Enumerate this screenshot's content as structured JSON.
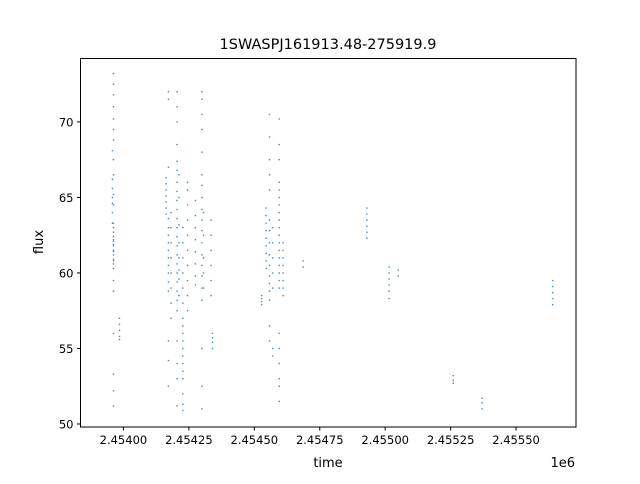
{
  "chart_data": {
    "type": "scatter",
    "title": "1SWASPJ161913.48-275919.9",
    "xlabel": "time",
    "ylabel": "flux",
    "x_offset_label": "1e6",
    "xlim": [
      2453836,
      2455729
    ],
    "ylim": [
      49.8,
      74.2
    ],
    "grid": false,
    "color": "#1f77b4",
    "x_ticks": [
      2454000,
      2454250,
      2454500,
      2454750,
      2455000,
      2455250,
      2455500
    ],
    "x_tick_labels": [
      "2.45400",
      "2.45425",
      "2.45450",
      "2.45475",
      "2.45500",
      "2.45525",
      "2.45550"
    ],
    "y_ticks": [
      50,
      55,
      60,
      65,
      70
    ],
    "y_tick_labels": [
      "50",
      "55",
      "60",
      "65",
      "70"
    ],
    "groups": [
      {
        "x": 2453958,
        "y": [
          68.1,
          66.2,
          65.6,
          65.0,
          64.6,
          64.0,
          63.3
        ]
      },
      {
        "x": 2453962,
        "y": [
          63.3,
          63.0,
          62.7,
          62.4,
          62.1,
          61.8,
          61.5,
          61.2,
          60.9,
          60.6,
          60.3,
          61.9,
          62.2,
          61.4,
          60.8,
          73.2,
          72.5,
          71.8,
          71.0,
          70.2,
          69.5,
          68.8,
          67.5,
          66.5,
          65.2,
          64.5,
          59.5,
          58.8,
          56.0,
          53.3,
          52.2,
          51.2
        ]
      },
      {
        "x": 2453985,
        "y": [
          57.0,
          56.6,
          56.2,
          55.8,
          55.6
        ]
      },
      {
        "x": 2454163,
        "y": [
          66.3,
          65.9,
          65.5,
          65.1,
          64.7,
          64.3,
          63.9
        ]
      },
      {
        "x": 2454172,
        "y": [
          63.6,
          63.0,
          62.5,
          62.0,
          61.5,
          61.0,
          60.5,
          60.0,
          59.4,
          58.8,
          55.5,
          54.2,
          52.5,
          67.0,
          71.5,
          72.0
        ]
      },
      {
        "x": 2454182,
        "y": [
          64.0,
          63.0,
          62.0,
          61.0,
          60.0,
          59.0,
          58.0,
          57.0
        ]
      },
      {
        "x": 2454205,
        "y": [
          67.4,
          66.8,
          66.0,
          65.4,
          64.8,
          64.2,
          63.6,
          63.0,
          62.4,
          61.8,
          61.2,
          60.6,
          60.0,
          59.4,
          58.8,
          58.2,
          57.5,
          72.0,
          71.0,
          70.0,
          68.5,
          55.5,
          54.0,
          53.0,
          51.2
        ]
      },
      {
        "x": 2454212,
        "y": [
          66.5,
          65.0,
          63.2,
          62.0,
          61.0,
          60.2,
          59.6,
          58.5
        ]
      },
      {
        "x": 2454227,
        "y": [
          63.0,
          62.0,
          61.0,
          60.0,
          59.0,
          58.0,
          57.0,
          56.5,
          56.0,
          55.5,
          55.0,
          54.5,
          54.0,
          53.5,
          53.0,
          52.0,
          51.3,
          50.9
        ]
      },
      {
        "x": 2454245,
        "y": [
          66.0,
          65.5,
          64.5,
          63.5,
          62.5,
          61.5,
          60.5,
          59.5,
          58.5,
          57.5
        ]
      },
      {
        "x": 2454275,
        "y": [
          64.8,
          63.8,
          63.0,
          62.2,
          61.4,
          60.6,
          59.8,
          59.2
        ]
      },
      {
        "x": 2454300,
        "y": [
          66.5,
          65.8,
          65.0,
          64.2,
          63.5,
          62.8,
          62.0,
          61.2,
          60.5,
          59.8,
          59.0,
          58.2,
          72.0,
          71.5,
          70.5,
          69.5,
          68.0,
          55.0,
          52.5,
          51.0
        ]
      },
      {
        "x": 2454306,
        "y": [
          64.0,
          62.5,
          61.0,
          60.0,
          59.0
        ]
      },
      {
        "x": 2454335,
        "y": [
          63.5,
          62.5,
          61.5,
          60.5,
          59.5,
          58.5
        ]
      },
      {
        "x": 2454340,
        "y": [
          56.0,
          55.7,
          55.4,
          55.0
        ]
      },
      {
        "x": 2454528,
        "y": [
          58.5,
          58.3,
          58.1,
          57.9
        ]
      },
      {
        "x": 2454545,
        "y": [
          64.3,
          63.8,
          63.3,
          62.8,
          62.3,
          61.8,
          61.3,
          60.8,
          60.3
        ]
      },
      {
        "x": 2454558,
        "y": [
          63.5,
          62.8,
          62.0,
          61.2,
          60.5,
          59.8,
          59.3,
          58.8,
          58.2,
          65.5,
          66.5,
          67.5,
          69.0,
          70.5,
          56.5,
          55.5
        ]
      },
      {
        "x": 2454570,
        "y": [
          63.0,
          62.0,
          61.0,
          60.0,
          59.0,
          55.0,
          54.5
        ]
      },
      {
        "x": 2454595,
        "y": [
          66.0,
          65.5,
          65.0,
          64.5,
          64.0,
          63.5,
          63.0,
          62.5,
          62.0,
          61.5,
          61.0,
          60.5,
          60.0,
          59.5,
          59.0,
          70.2,
          68.5,
          67.5,
          56.0,
          55.0,
          54.0,
          53.0,
          52.5,
          51.5
        ]
      },
      {
        "x": 2454610,
        "y": [
          62.0,
          61.5,
          61.0,
          60.5,
          60.0,
          59.5,
          59.0,
          58.5
        ]
      },
      {
        "x": 2454687,
        "y": [
          60.8,
          60.4
        ]
      },
      {
        "x": 2454930,
        "y": [
          64.3,
          63.9,
          63.5,
          63.1,
          62.7,
          62.3
        ]
      },
      {
        "x": 2455015,
        "y": [
          60.4,
          60.0,
          59.6,
          59.2,
          58.8,
          58.3
        ]
      },
      {
        "x": 2455050,
        "y": [
          60.2,
          59.8
        ]
      },
      {
        "x": 2455260,
        "y": [
          53.2,
          52.9,
          52.7
        ]
      },
      {
        "x": 2455370,
        "y": [
          51.7,
          51.4,
          51.0
        ]
      },
      {
        "x": 2455640,
        "y": [
          59.5,
          59.1,
          58.7,
          58.3,
          57.9
        ]
      }
    ]
  }
}
